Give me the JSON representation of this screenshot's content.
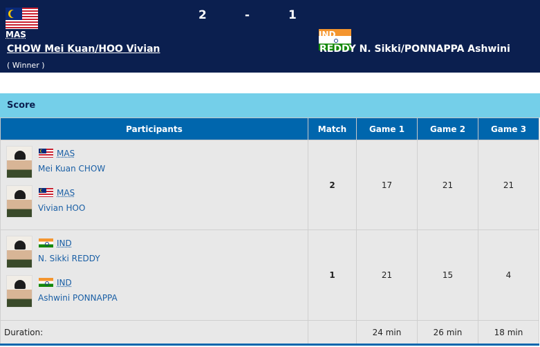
{
  "header": {
    "home": {
      "noc": "MAS",
      "team": "CHOW Mei Kuan/HOO Vivian",
      "result": "( Winner )",
      "score": "2"
    },
    "separator": "-",
    "away": {
      "noc": "IND",
      "team": "REDDY N. Sikki/PONNAPPA Ashwini",
      "score": "1"
    }
  },
  "section_title": "Score",
  "table": {
    "columns": [
      "Participants",
      "Match",
      "Game 1",
      "Game 2",
      "Game 3"
    ],
    "rows": [
      {
        "players": [
          {
            "noc": "MAS",
            "name": "Mei Kuan CHOW"
          },
          {
            "noc": "MAS",
            "name": "Vivian HOO"
          }
        ],
        "match": "2",
        "games": [
          "17",
          "21",
          "21"
        ]
      },
      {
        "players": [
          {
            "noc": "IND",
            "name": "N. Sikki REDDY"
          },
          {
            "noc": "IND",
            "name": "Ashwini PONNAPPA"
          }
        ],
        "match": "1",
        "games": [
          "21",
          "15",
          "4"
        ]
      }
    ],
    "duration": {
      "label": "Duration:",
      "games": [
        "24 min",
        "26 min",
        "18 min"
      ]
    }
  },
  "colors": {
    "header_bg": "#0b1f4f",
    "section_bar": "#74cfe9",
    "table_header": "#0066ad",
    "link": "#1a5fa5"
  }
}
